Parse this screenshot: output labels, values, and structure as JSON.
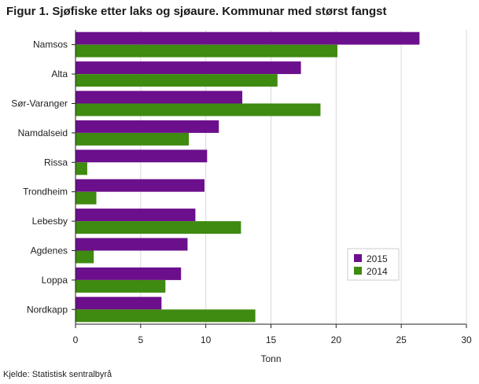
{
  "title": "Figur 1. Sjøfiske etter laks og sjøaure. Kommunar med størst fangst",
  "source": "Kjelde: Statistisk sentralbyrå",
  "colors": {
    "series_2015": "#6b0f8c",
    "series_2014": "#3f8a10",
    "grid": "#d9d9d9",
    "axis": "#222222"
  },
  "chart_data": {
    "type": "bar",
    "orientation": "horizontal",
    "categories": [
      "Namsos",
      "Alta",
      "Sør-Varanger",
      "Namdalseid",
      "Rissa",
      "Trondheim",
      "Lebesby",
      "Agdenes",
      "Loppa",
      "Nordkapp"
    ],
    "series": [
      {
        "name": "2015",
        "color": "#6b0f8c",
        "values": [
          26.4,
          17.3,
          12.8,
          11.0,
          10.1,
          9.9,
          9.2,
          8.6,
          8.1,
          6.6
        ]
      },
      {
        "name": "2014",
        "color": "#3f8a10",
        "values": [
          20.1,
          15.5,
          18.8,
          8.7,
          0.9,
          1.6,
          12.7,
          1.4,
          6.9,
          13.8
        ]
      }
    ],
    "xlabel": "Tonn",
    "ylabel": "",
    "xlim": [
      0,
      30
    ],
    "xticks": [
      0,
      5,
      10,
      15,
      20,
      25,
      30
    ],
    "xtick_labels": [
      "0",
      "5",
      "10",
      "15",
      "20",
      "25",
      "30"
    ],
    "grid": "vertical",
    "legend": {
      "position": "lower-right",
      "entries": [
        "2015",
        "2014"
      ]
    }
  }
}
